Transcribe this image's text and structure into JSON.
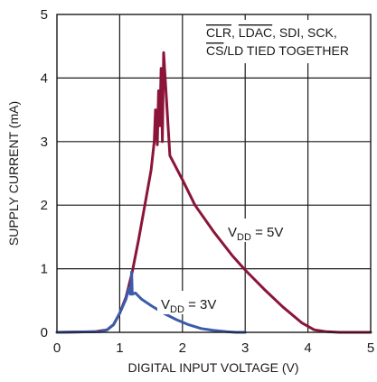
{
  "chart_data": {
    "type": "line",
    "xlabel": "DIGITAL INPUT VOLTAGE (V)",
    "ylabel": "SUPPLY CURRENT (mA)",
    "xlim": [
      0,
      5
    ],
    "ylim": [
      0,
      5
    ],
    "x_ticks": [
      "0",
      "1",
      "2",
      "3",
      "4",
      "5"
    ],
    "y_ticks": [
      "0",
      "1",
      "2",
      "3",
      "4",
      "5"
    ],
    "grid": true,
    "note": {
      "line1_parts": [
        "CLR",
        ", ",
        "LDAC",
        ", SDI, SCK,"
      ],
      "line2_parts": [
        "CS",
        "/LD TIED TOGETHER"
      ]
    },
    "series": [
      {
        "annotation": {
          "prefix": "V",
          "sub": "DD",
          "suffix": " = 5V"
        },
        "color": "#8b1538",
        "x": [
          0,
          0.6,
          0.8,
          0.9,
          1.0,
          1.1,
          1.2,
          1.3,
          1.4,
          1.5,
          1.55,
          1.57,
          1.6,
          1.62,
          1.64,
          1.66,
          1.68,
          1.7,
          1.8,
          2.0,
          2.2,
          2.5,
          2.8,
          3.0,
          3.3,
          3.6,
          3.9,
          4.1,
          4.3,
          4.5,
          5.0
        ],
        "y": [
          0,
          0.01,
          0.04,
          0.12,
          0.3,
          0.55,
          0.95,
          1.45,
          2.0,
          2.55,
          3.0,
          3.5,
          2.95,
          3.8,
          3.25,
          4.15,
          3.0,
          4.4,
          2.78,
          2.4,
          2.0,
          1.58,
          1.2,
          0.98,
          0.68,
          0.4,
          0.15,
          0.04,
          0.01,
          0,
          0
        ]
      },
      {
        "annotation": {
          "prefix": "V",
          "sub": "DD",
          "suffix": " = 3V"
        },
        "color": "#3b5bab",
        "x": [
          0,
          0.7,
          0.8,
          0.9,
          1.0,
          1.1,
          1.15,
          1.17,
          1.19,
          1.2,
          1.25,
          1.35,
          1.5,
          1.7,
          1.9,
          2.1,
          2.3,
          2.5,
          2.7,
          2.85,
          3.0
        ],
        "y": [
          0,
          0.01,
          0.04,
          0.12,
          0.3,
          0.52,
          0.7,
          0.6,
          0.95,
          0.6,
          0.62,
          0.52,
          0.42,
          0.3,
          0.2,
          0.12,
          0.06,
          0.03,
          0.01,
          0,
          0
        ]
      }
    ]
  }
}
